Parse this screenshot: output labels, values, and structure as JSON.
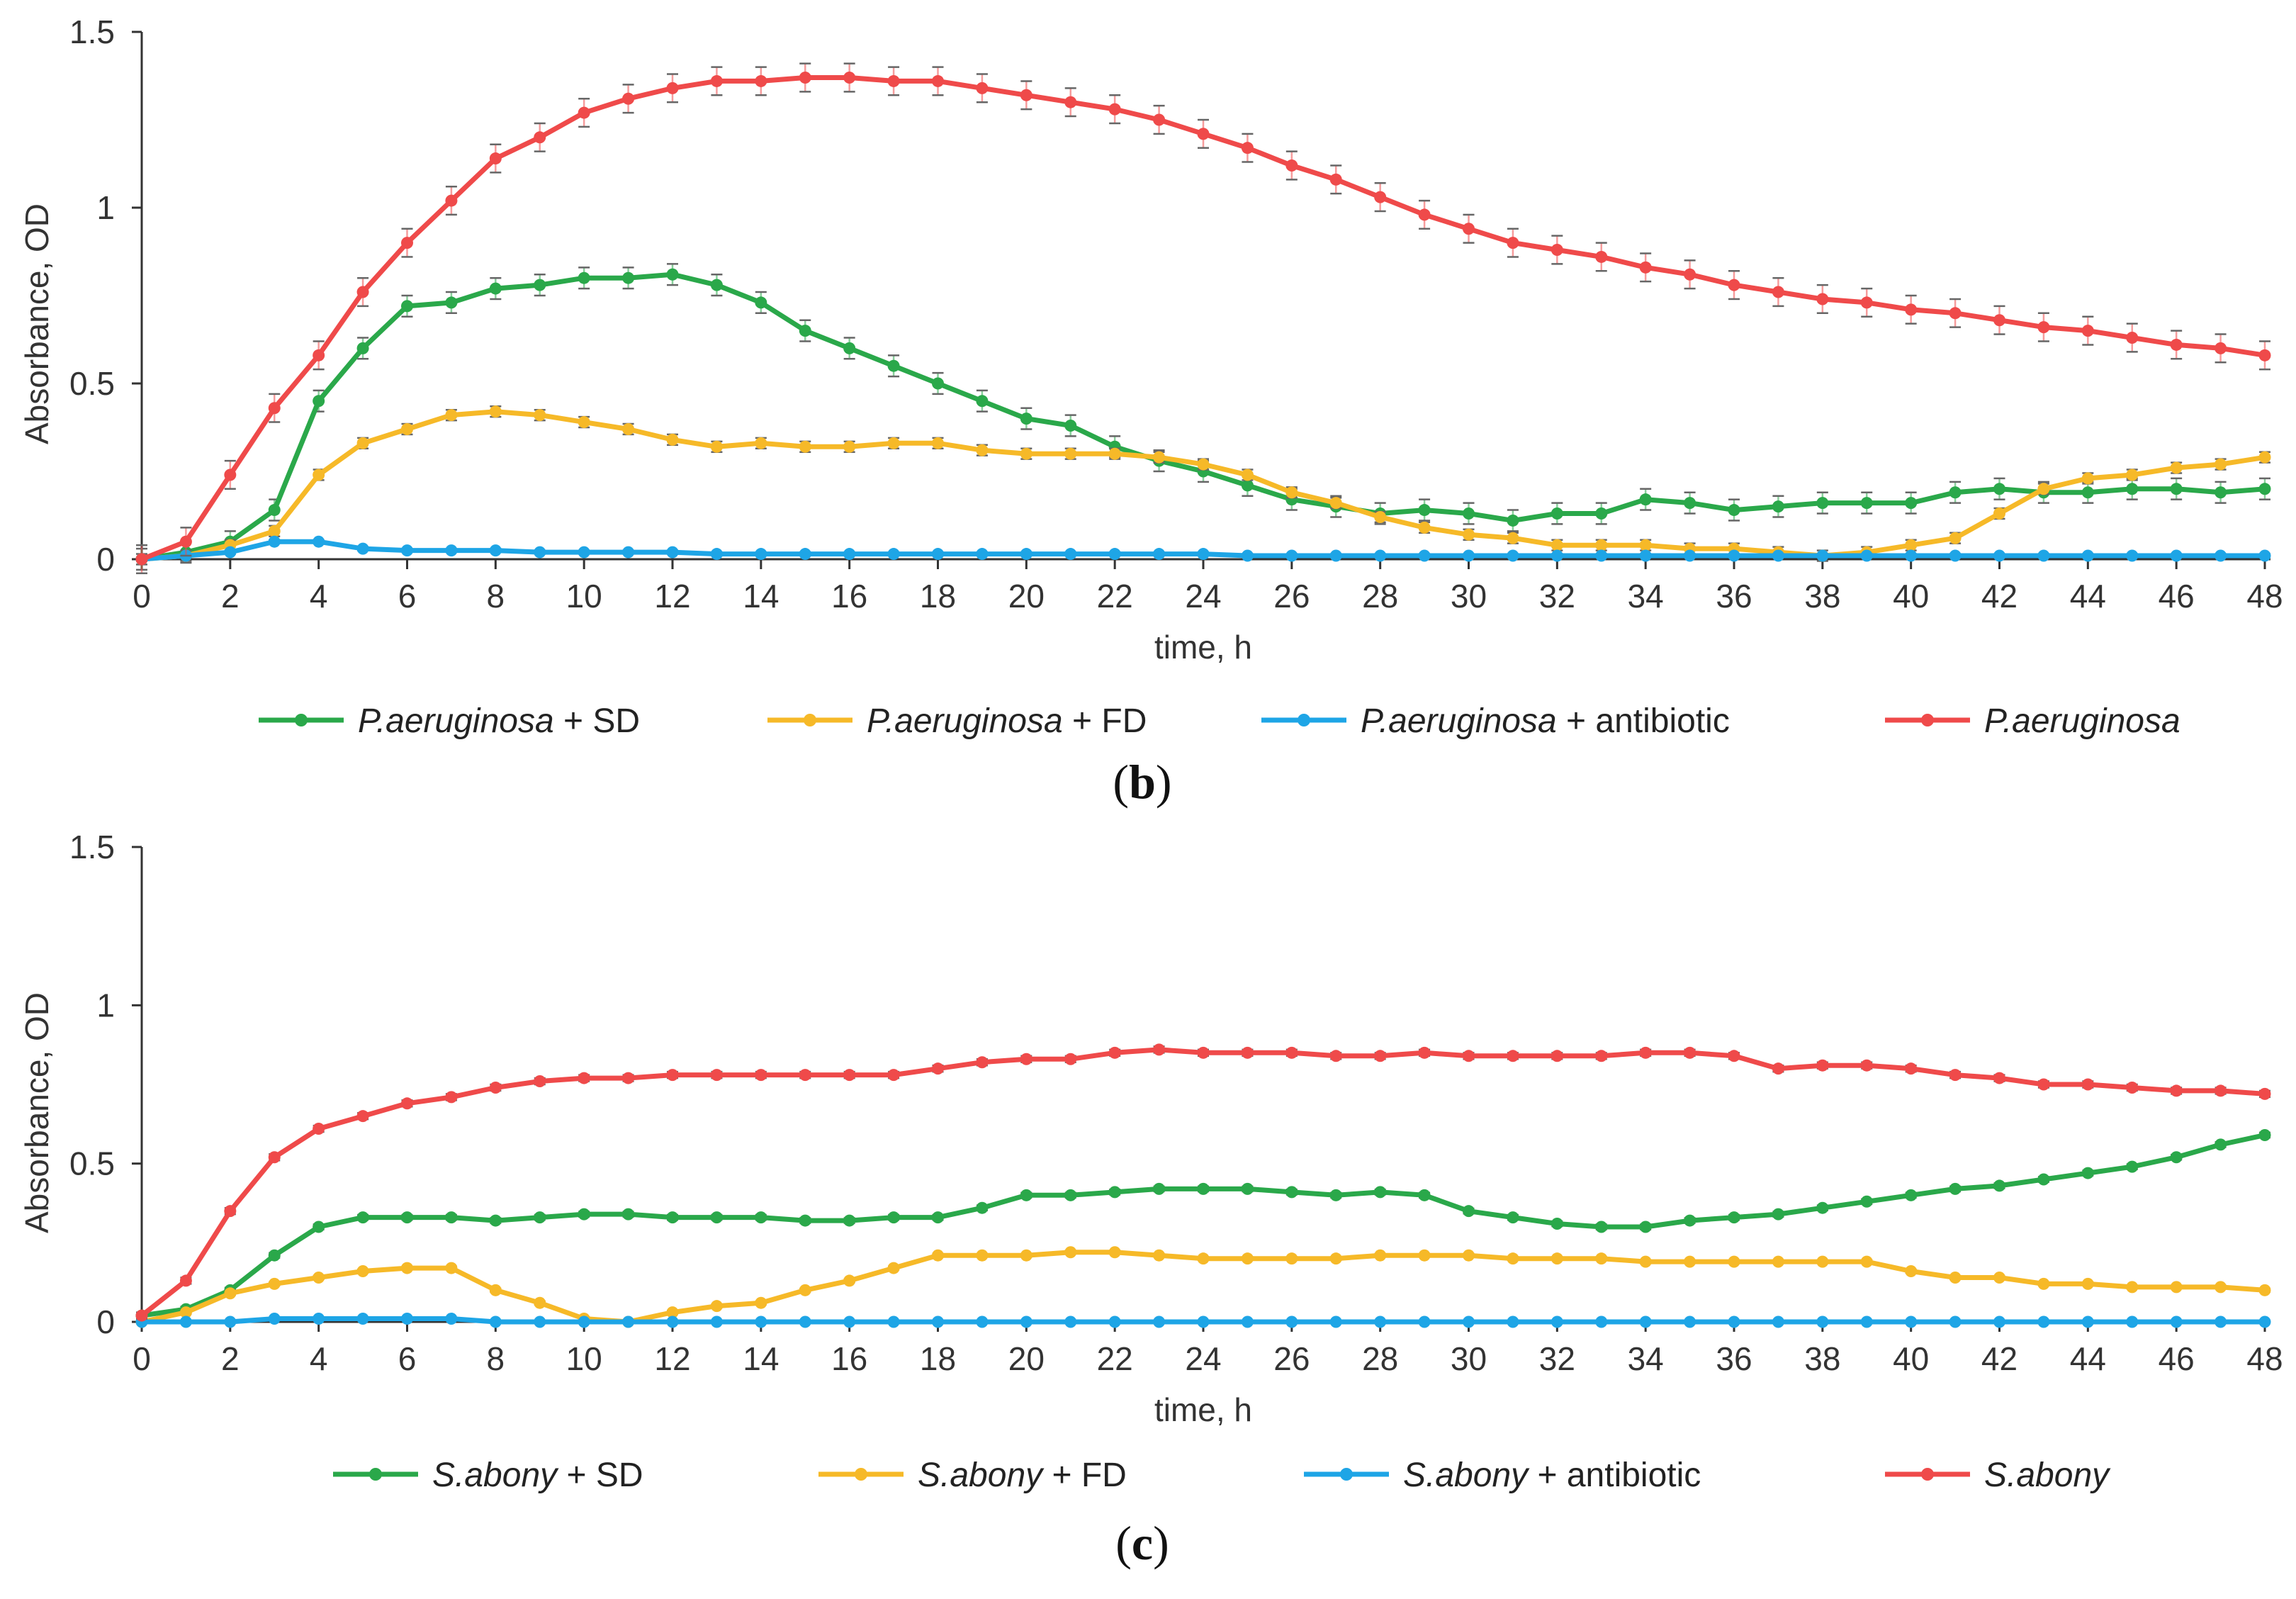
{
  "chart_data": [
    {
      "type": "line",
      "panel_label": "b",
      "xlabel": "time, h",
      "ylabel": "Absorbance, OD",
      "xlim": [
        0,
        48
      ],
      "ylim": [
        0,
        1.5
      ],
      "x_ticks": [
        "0",
        "2",
        "4",
        "6",
        "8",
        "10",
        "12",
        "14",
        "16",
        "18",
        "20",
        "22",
        "24",
        "26",
        "28",
        "30",
        "32",
        "34",
        "36",
        "38",
        "40",
        "42",
        "44",
        "46",
        "48"
      ],
      "y_ticks": [
        "0",
        "0.5",
        "1",
        "1.5"
      ],
      "x": [
        0,
        1,
        2,
        3,
        4,
        5,
        6,
        7,
        8,
        9,
        10,
        11,
        12,
        13,
        14,
        15,
        16,
        17,
        18,
        19,
        20,
        21,
        22,
        23,
        24,
        25,
        26,
        27,
        28,
        29,
        30,
        31,
        32,
        33,
        34,
        35,
        36,
        37,
        38,
        39,
        40,
        41,
        42,
        43,
        44,
        45,
        46,
        47,
        48
      ],
      "legend_position": "bottom",
      "series": [
        {
          "name_italic": "P.aeruginosa",
          "name_suffix": " + SD",
          "color": "#2aa84a",
          "values": [
            0,
            0.02,
            0.05,
            0.14,
            0.45,
            0.6,
            0.72,
            0.73,
            0.77,
            0.78,
            0.8,
            0.8,
            0.81,
            0.78,
            0.73,
            0.65,
            0.6,
            0.55,
            0.5,
            0.45,
            0.4,
            0.38,
            0.32,
            0.28,
            0.25,
            0.21,
            0.17,
            0.15,
            0.13,
            0.14,
            0.13,
            0.11,
            0.13,
            0.13,
            0.17,
            0.16,
            0.14,
            0.15,
            0.16,
            0.16,
            0.16,
            0.19,
            0.2,
            0.19,
            0.19,
            0.2,
            0.2,
            0.19,
            0.2
          ],
          "error": 0.03
        },
        {
          "name_italic": "P.aeruginosa",
          "name_suffix": " + FD",
          "color": "#f6b928",
          "values": [
            0,
            0.01,
            0.04,
            0.08,
            0.24,
            0.33,
            0.37,
            0.41,
            0.42,
            0.41,
            0.39,
            0.37,
            0.34,
            0.32,
            0.33,
            0.32,
            0.32,
            0.33,
            0.33,
            0.31,
            0.3,
            0.3,
            0.3,
            0.29,
            0.27,
            0.24,
            0.19,
            0.16,
            0.12,
            0.09,
            0.07,
            0.06,
            0.04,
            0.04,
            0.04,
            0.03,
            0.03,
            0.02,
            0.01,
            0.02,
            0.04,
            0.06,
            0.13,
            0.2,
            0.23,
            0.24,
            0.26,
            0.27,
            0.29
          ],
          "error": 0.015
        },
        {
          "name_italic": "P.aeruginosa",
          "name_suffix": " + antibiotic",
          "color": "#1ea5e6",
          "values": [
            0,
            0.01,
            0.02,
            0.05,
            0.05,
            0.03,
            0.025,
            0.025,
            0.025,
            0.02,
            0.02,
            0.02,
            0.02,
            0.015,
            0.015,
            0.015,
            0.015,
            0.015,
            0.015,
            0.015,
            0.015,
            0.015,
            0.015,
            0.015,
            0.015,
            0.01,
            0.01,
            0.01,
            0.01,
            0.01,
            0.01,
            0.01,
            0.01,
            0.01,
            0.01,
            0.01,
            0.01,
            0.01,
            0.01,
            0.01,
            0.01,
            0.01,
            0.01,
            0.01,
            0.01,
            0.01,
            0.01,
            0.01,
            0.01
          ],
          "error": 0.005
        },
        {
          "name_italic": "P.aeruginosa",
          "name_suffix": "",
          "color": "#ef4a4a",
          "values": [
            0,
            0.05,
            0.24,
            0.43,
            0.58,
            0.76,
            0.9,
            1.02,
            1.14,
            1.2,
            1.27,
            1.31,
            1.34,
            1.36,
            1.36,
            1.37,
            1.37,
            1.36,
            1.36,
            1.34,
            1.32,
            1.3,
            1.28,
            1.25,
            1.21,
            1.17,
            1.12,
            1.08,
            1.03,
            0.98,
            0.94,
            0.9,
            0.88,
            0.86,
            0.83,
            0.81,
            0.78,
            0.76,
            0.74,
            0.73,
            0.71,
            0.7,
            0.68,
            0.66,
            0.65,
            0.63,
            0.61,
            0.6,
            0.58
          ],
          "error": 0.04
        }
      ]
    },
    {
      "type": "line",
      "panel_label": "c",
      "xlabel": "time, h",
      "ylabel": "Absorbance, OD",
      "xlim": [
        0,
        48
      ],
      "ylim": [
        0,
        1.5
      ],
      "x_ticks": [
        "0",
        "2",
        "4",
        "6",
        "8",
        "10",
        "12",
        "14",
        "16",
        "18",
        "20",
        "22",
        "24",
        "26",
        "28",
        "30",
        "32",
        "34",
        "36",
        "38",
        "40",
        "42",
        "44",
        "46",
        "48"
      ],
      "y_ticks": [
        "0",
        "0.5",
        "1",
        "1.5"
      ],
      "x": [
        0,
        1,
        2,
        3,
        4,
        5,
        6,
        7,
        8,
        9,
        10,
        11,
        12,
        13,
        14,
        15,
        16,
        17,
        18,
        19,
        20,
        21,
        22,
        23,
        24,
        25,
        26,
        27,
        28,
        29,
        30,
        31,
        32,
        33,
        34,
        35,
        36,
        37,
        38,
        39,
        40,
        41,
        42,
        43,
        44,
        45,
        46,
        47,
        48
      ],
      "legend_position": "bottom",
      "series": [
        {
          "name_italic": "S.abony",
          "name_suffix": " + SD",
          "color": "#2aa84a",
          "values": [
            0.02,
            0.04,
            0.1,
            0.21,
            0.3,
            0.33,
            0.33,
            0.33,
            0.32,
            0.33,
            0.34,
            0.34,
            0.33,
            0.33,
            0.33,
            0.32,
            0.32,
            0.33,
            0.33,
            0.36,
            0.4,
            0.4,
            0.41,
            0.42,
            0.42,
            0.42,
            0.41,
            0.4,
            0.41,
            0.4,
            0.35,
            0.33,
            0.31,
            0.3,
            0.3,
            0.32,
            0.33,
            0.34,
            0.36,
            0.38,
            0.4,
            0.42,
            0.43,
            0.45,
            0.47,
            0.49,
            0.52,
            0.56,
            0.59
          ],
          "error": 0.008
        },
        {
          "name_italic": "S.abony",
          "name_suffix": " + FD",
          "color": "#f6b928",
          "values": [
            0,
            0.03,
            0.09,
            0.12,
            0.14,
            0.16,
            0.17,
            0.17,
            0.1,
            0.06,
            0.01,
            0.0,
            0.03,
            0.05,
            0.06,
            0.1,
            0.13,
            0.17,
            0.21,
            0.21,
            0.21,
            0.22,
            0.22,
            0.21,
            0.2,
            0.2,
            0.2,
            0.2,
            0.21,
            0.21,
            0.21,
            0.2,
            0.2,
            0.2,
            0.19,
            0.19,
            0.19,
            0.19,
            0.19,
            0.19,
            0.16,
            0.14,
            0.14,
            0.12,
            0.12,
            0.11,
            0.11,
            0.11,
            0.1
          ],
          "error": 0.005
        },
        {
          "name_italic": "S.abony",
          "name_suffix": " + antibiotic",
          "color": "#1ea5e6",
          "values": [
            0,
            0,
            0,
            0.01,
            0.01,
            0.01,
            0.01,
            0.01,
            0,
            0,
            0,
            0,
            0,
            0,
            0,
            0,
            0,
            0,
            0,
            0,
            0,
            0,
            0,
            0,
            0,
            0,
            0,
            0,
            0,
            0,
            0,
            0,
            0,
            0,
            0,
            0,
            0,
            0,
            0,
            0,
            0,
            0,
            0,
            0,
            0,
            0,
            0,
            0,
            0
          ],
          "error": 0.003
        },
        {
          "name_italic": "S.abony",
          "name_suffix": "",
          "color": "#ef4a4a",
          "values": [
            0.02,
            0.13,
            0.35,
            0.52,
            0.61,
            0.65,
            0.69,
            0.71,
            0.74,
            0.76,
            0.77,
            0.77,
            0.78,
            0.78,
            0.78,
            0.78,
            0.78,
            0.78,
            0.8,
            0.82,
            0.83,
            0.83,
            0.85,
            0.86,
            0.85,
            0.85,
            0.85,
            0.84,
            0.84,
            0.85,
            0.84,
            0.84,
            0.84,
            0.84,
            0.85,
            0.85,
            0.84,
            0.8,
            0.81,
            0.81,
            0.8,
            0.78,
            0.77,
            0.75,
            0.75,
            0.74,
            0.73,
            0.73,
            0.72
          ],
          "error": 0.01
        }
      ]
    }
  ]
}
